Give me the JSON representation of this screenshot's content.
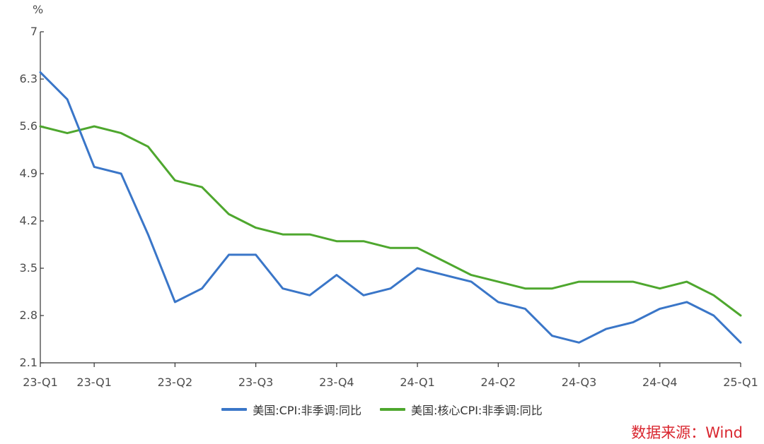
{
  "chart_data": {
    "type": "line",
    "title": "",
    "ylabel": "%",
    "xlabel": "",
    "ylim": [
      2.1,
      7.0
    ],
    "yticks": [
      "2.1",
      "2.8",
      "3.5",
      "4.2",
      "4.9",
      "5.6",
      "6.3",
      "7"
    ],
    "grid": false,
    "legend_position": "bottom",
    "x_tick_labels": [
      "23-Q1",
      "23-Q1",
      "23-Q2",
      "23-Q3",
      "23-Q4",
      "24-Q1",
      "24-Q2",
      "24-Q3",
      "24-Q4",
      "25-Q1"
    ],
    "series": [
      {
        "name": "美国:CPI:非季调:同比",
        "color": "#3a76c8",
        "values": [
          6.4,
          6.0,
          5.0,
          4.9,
          4.0,
          3.0,
          3.2,
          3.7,
          3.7,
          3.2,
          3.1,
          3.4,
          3.1,
          3.2,
          3.5,
          3.4,
          3.3,
          3.0,
          2.9,
          2.5,
          2.4,
          2.6,
          2.7,
          2.9,
          3.0,
          2.8,
          2.4
        ]
      },
      {
        "name": "美国:核心CPI:非季调:同比",
        "color": "#4ea72e",
        "values": [
          5.6,
          5.5,
          5.6,
          5.5,
          5.3,
          4.8,
          4.7,
          4.3,
          4.1,
          4.0,
          4.0,
          3.9,
          3.9,
          3.8,
          3.8,
          3.6,
          3.4,
          3.3,
          3.2,
          3.2,
          3.3,
          3.3,
          3.3,
          3.2,
          3.3,
          3.1,
          2.8
        ]
      }
    ]
  },
  "source_note": "数据来源：Wind"
}
